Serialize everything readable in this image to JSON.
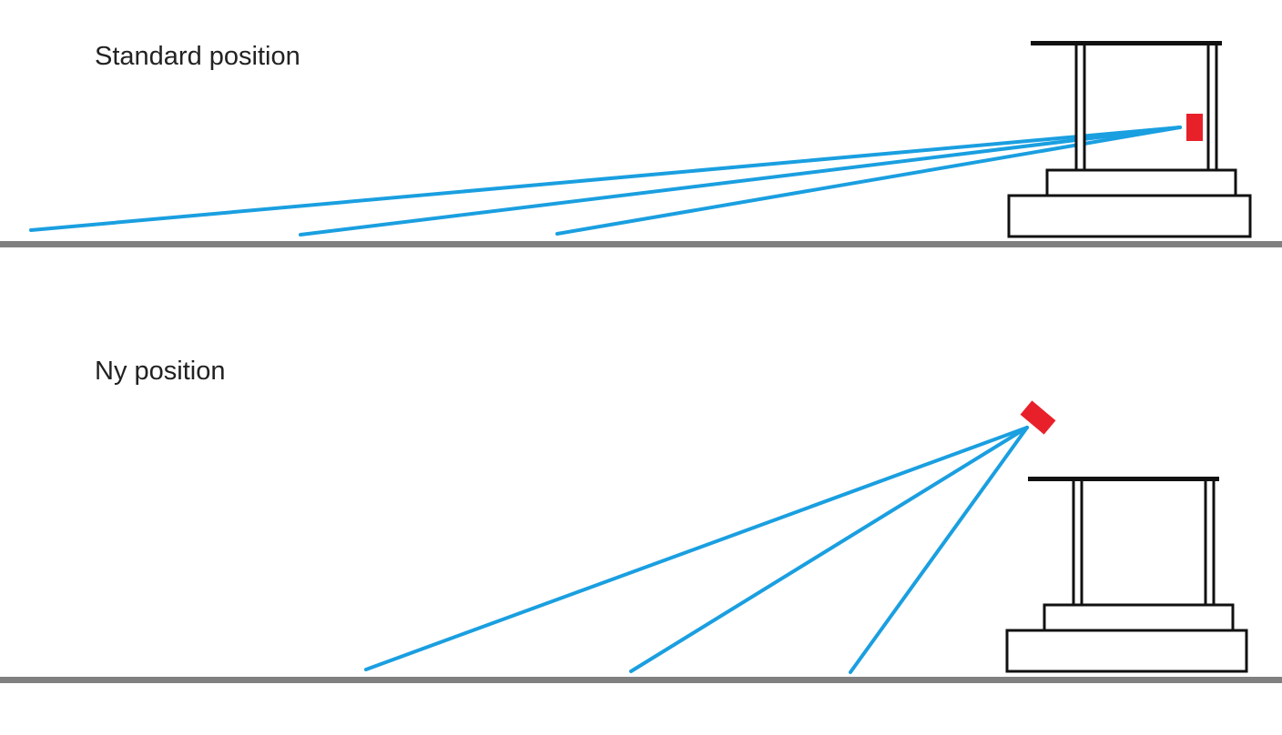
{
  "colors": {
    "beam": "#1a9fe0",
    "sensor": "#e8202a",
    "ground": "#808080",
    "structure": "#111111"
  },
  "panels": [
    {
      "label": "Standard position"
    },
    {
      "label": "Ny position"
    }
  ]
}
